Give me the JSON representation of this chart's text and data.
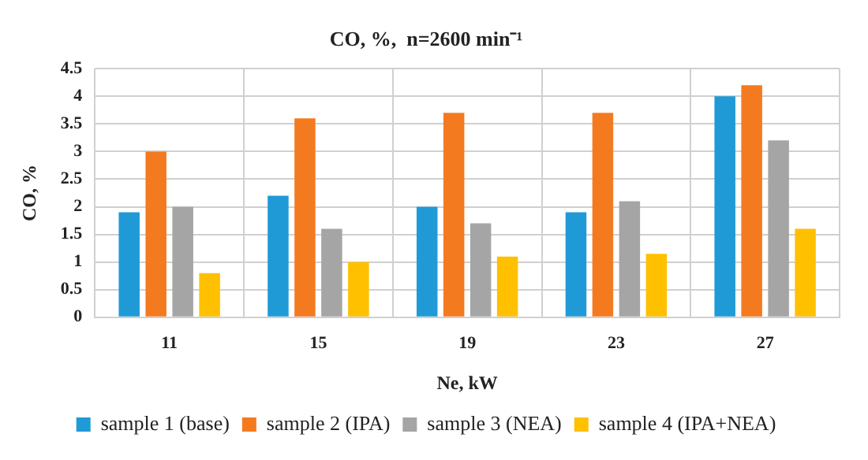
{
  "chart_data": {
    "type": "bar",
    "title": "CO, %,  n=2600 min⁻¹",
    "xlabel": "Ne, kW",
    "ylabel": "CO, %",
    "categories": [
      "11",
      "15",
      "19",
      "23",
      "27"
    ],
    "series": [
      {
        "name": "sample 1 (base)",
        "color": "#1f9ad6",
        "values": [
          1.9,
          2.2,
          2.0,
          1.9,
          4.0
        ]
      },
      {
        "name": "sample 2 (IPA)",
        "color": "#f47a20",
        "values": [
          3.0,
          3.6,
          3.7,
          3.7,
          4.2
        ]
      },
      {
        "name": "sample 3 (NEA)",
        "color": "#a5a5a5",
        "values": [
          2.0,
          1.6,
          1.7,
          2.1,
          3.2
        ]
      },
      {
        "name": "sample 4 (IPA+NEA)",
        "color": "#ffc000",
        "values": [
          0.8,
          1.0,
          1.1,
          1.15,
          1.6
        ]
      }
    ],
    "ylim": [
      0,
      4.5
    ],
    "yticks": [
      0,
      0.5,
      1,
      1.5,
      2,
      2.5,
      3,
      3.5,
      4,
      4.5
    ],
    "grid": true,
    "legend": "bottom"
  }
}
